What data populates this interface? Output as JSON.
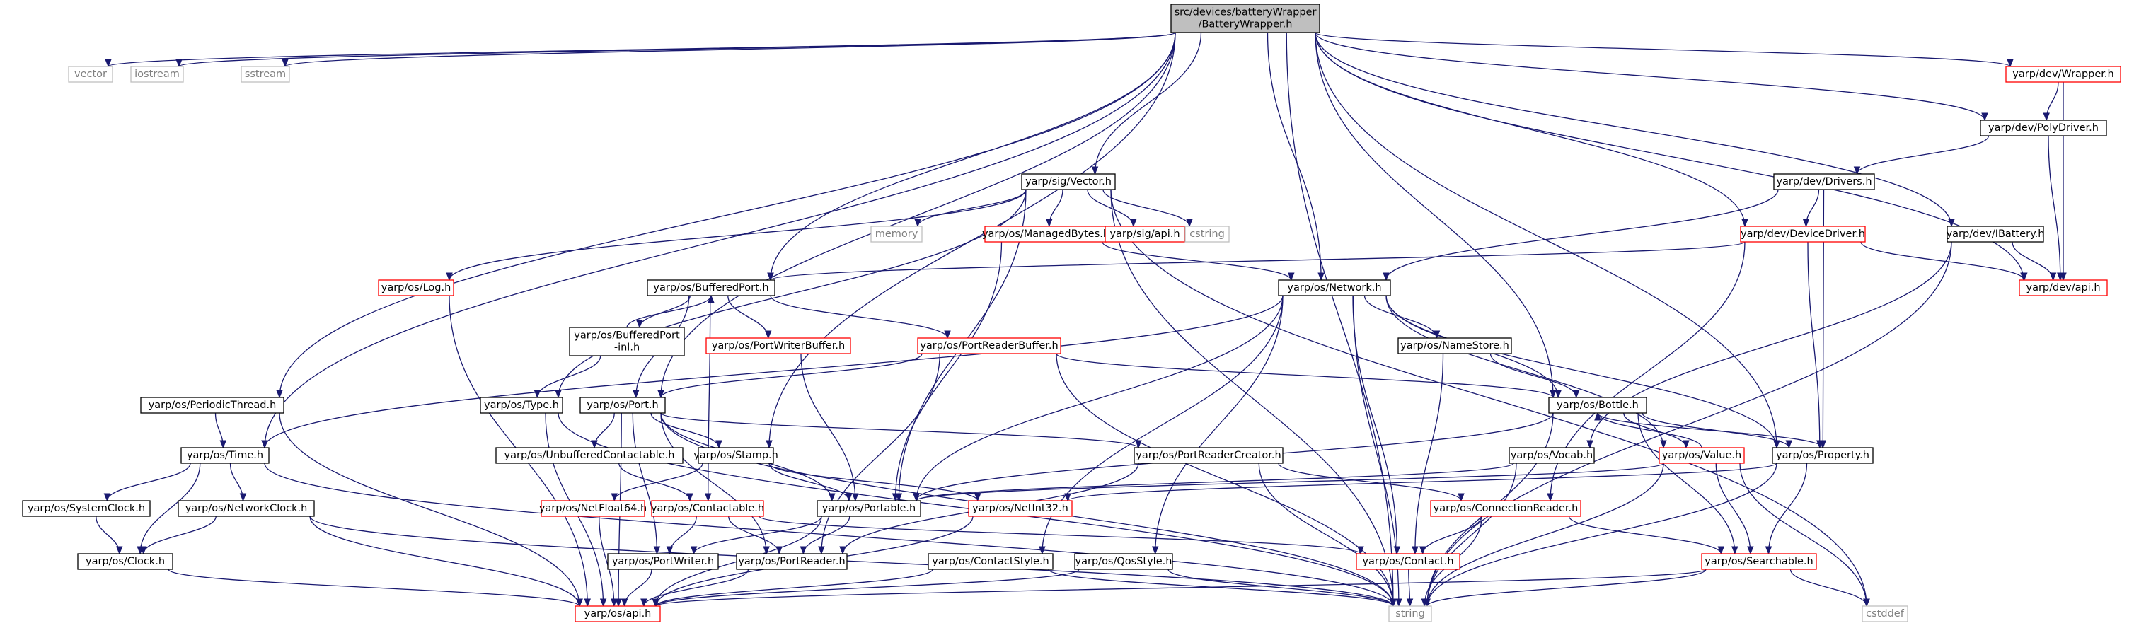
{
  "graph": {
    "nodes": [
      {
        "id": "bw",
        "lines": [
          "src/devices/batteryWrapper",
          "/BatteryWrapper.h"
        ],
        "style": "current"
      },
      {
        "id": "vector",
        "lines": [
          "vector"
        ],
        "style": "sys"
      },
      {
        "id": "iostream",
        "lines": [
          "iostream"
        ],
        "style": "sys"
      },
      {
        "id": "sstream",
        "lines": [
          "sstream"
        ],
        "style": "sys"
      },
      {
        "id": "periodic",
        "lines": [
          "yarp/os/PeriodicThread.h"
        ],
        "style": "normal"
      },
      {
        "id": "time",
        "lines": [
          "yarp/os/Time.h"
        ],
        "style": "normal"
      },
      {
        "id": "sysclock",
        "lines": [
          "yarp/os/SystemClock.h"
        ],
        "style": "normal"
      },
      {
        "id": "netclock",
        "lines": [
          "yarp/os/NetworkClock.h"
        ],
        "style": "normal"
      },
      {
        "id": "clock",
        "lines": [
          "yarp/os/Clock.h"
        ],
        "style": "normal"
      },
      {
        "id": "api",
        "lines": [
          "yarp/os/api.h"
        ],
        "style": "trunc"
      },
      {
        "id": "log",
        "lines": [
          "yarp/os/Log.h"
        ],
        "style": "trunc"
      },
      {
        "id": "type",
        "lines": [
          "yarp/os/Type.h"
        ],
        "style": "normal"
      },
      {
        "id": "bp",
        "lines": [
          "yarp/os/BufferedPort.h"
        ],
        "style": "normal"
      },
      {
        "id": "bpinl",
        "lines": [
          "yarp/os/BufferedPort",
          "-inl.h"
        ],
        "style": "normal"
      },
      {
        "id": "port",
        "lines": [
          "yarp/os/Port.h"
        ],
        "style": "normal"
      },
      {
        "id": "unbuf",
        "lines": [
          "yarp/os/UnbufferedContactable.h"
        ],
        "style": "normal"
      },
      {
        "id": "stamp",
        "lines": [
          "yarp/os/Stamp.h"
        ],
        "style": "normal"
      },
      {
        "id": "nf64",
        "lines": [
          "yarp/os/NetFloat64.h"
        ],
        "style": "trunc"
      },
      {
        "id": "contactable",
        "lines": [
          "yarp/os/Contactable.h"
        ],
        "style": "trunc"
      },
      {
        "id": "portable",
        "lines": [
          "yarp/os/Portable.h"
        ],
        "style": "normal"
      },
      {
        "id": "portwriter",
        "lines": [
          "yarp/os/PortWriter.h"
        ],
        "style": "normal"
      },
      {
        "id": "portreader",
        "lines": [
          "yarp/os/PortReader.h"
        ],
        "style": "normal"
      },
      {
        "id": "pwb",
        "lines": [
          "yarp/os/PortWriterBuffer.h"
        ],
        "style": "trunc"
      },
      {
        "id": "prb",
        "lines": [
          "yarp/os/PortReaderBuffer.h"
        ],
        "style": "trunc"
      },
      {
        "id": "prc",
        "lines": [
          "yarp/os/PortReaderCreator.h"
        ],
        "style": "normal"
      },
      {
        "id": "netint",
        "lines": [
          "yarp/os/NetInt32.h"
        ],
        "style": "trunc"
      },
      {
        "id": "contactstyle",
        "lines": [
          "yarp/os/ContactStyle.h"
        ],
        "style": "normal"
      },
      {
        "id": "qos",
        "lines": [
          "yarp/os/QosStyle.h"
        ],
        "style": "normal"
      },
      {
        "id": "string",
        "lines": [
          "string"
        ],
        "style": "sys"
      },
      {
        "id": "sigvec",
        "lines": [
          "yarp/sig/Vector.h"
        ],
        "style": "normal"
      },
      {
        "id": "memory",
        "lines": [
          "memory"
        ],
        "style": "sys"
      },
      {
        "id": "managed",
        "lines": [
          "yarp/os/ManagedBytes.h"
        ],
        "style": "trunc"
      },
      {
        "id": "sigapi",
        "lines": [
          "yarp/sig/api.h"
        ],
        "style": "trunc"
      },
      {
        "id": "cstring",
        "lines": [
          "cstring"
        ],
        "style": "sys"
      },
      {
        "id": "network",
        "lines": [
          "yarp/os/Network.h"
        ],
        "style": "normal"
      },
      {
        "id": "namestore",
        "lines": [
          "yarp/os/NameStore.h"
        ],
        "style": "normal"
      },
      {
        "id": "bottle",
        "lines": [
          "yarp/os/Bottle.h"
        ],
        "style": "normal"
      },
      {
        "id": "value",
        "lines": [
          "yarp/os/Value.h"
        ],
        "style": "trunc"
      },
      {
        "id": "property",
        "lines": [
          "yarp/os/Property.h"
        ],
        "style": "normal"
      },
      {
        "id": "vocab",
        "lines": [
          "yarp/os/Vocab.h"
        ],
        "style": "normal"
      },
      {
        "id": "connreader",
        "lines": [
          "yarp/os/ConnectionReader.h"
        ],
        "style": "trunc"
      },
      {
        "id": "contact",
        "lines": [
          "yarp/os/Contact.h"
        ],
        "style": "trunc"
      },
      {
        "id": "searchable",
        "lines": [
          "yarp/os/Searchable.h"
        ],
        "style": "trunc"
      },
      {
        "id": "cstddef",
        "lines": [
          "cstddef"
        ],
        "style": "sys"
      },
      {
        "id": "wrapper",
        "lines": [
          "yarp/dev/Wrapper.h"
        ],
        "style": "trunc"
      },
      {
        "id": "polydriver",
        "lines": [
          "yarp/dev/PolyDriver.h"
        ],
        "style": "normal"
      },
      {
        "id": "drivers",
        "lines": [
          "yarp/dev/Drivers.h"
        ],
        "style": "normal"
      },
      {
        "id": "devdriver",
        "lines": [
          "yarp/dev/DeviceDriver.h"
        ],
        "style": "trunc"
      },
      {
        "id": "ibattery",
        "lines": [
          "yarp/dev/IBattery.h"
        ],
        "style": "normal"
      },
      {
        "id": "devapi",
        "lines": [
          "yarp/dev/api.h"
        ],
        "style": "trunc"
      }
    ],
    "edges": [
      [
        "bw",
        "vector"
      ],
      [
        "bw",
        "iostream"
      ],
      [
        "bw",
        "sstream"
      ],
      [
        "bw",
        "periodic"
      ],
      [
        "bw",
        "time"
      ],
      [
        "bw",
        "stamp"
      ],
      [
        "bw",
        "port"
      ],
      [
        "bw",
        "bp"
      ],
      [
        "bw",
        "sigvec"
      ],
      [
        "bw",
        "network"
      ],
      [
        "bw",
        "bottle"
      ],
      [
        "bw",
        "property"
      ],
      [
        "bw",
        "string"
      ],
      [
        "bw",
        "devdriver"
      ],
      [
        "bw",
        "wrapper"
      ],
      [
        "bw",
        "polydriver"
      ],
      [
        "bw",
        "ibattery"
      ],
      [
        "bw",
        "devapi"
      ],
      [
        "periodic",
        "time"
      ],
      [
        "periodic",
        "api"
      ],
      [
        "time",
        "sysclock"
      ],
      [
        "time",
        "netclock"
      ],
      [
        "time",
        "clock"
      ],
      [
        "time",
        "string"
      ],
      [
        "sysclock",
        "clock"
      ],
      [
        "netclock",
        "clock"
      ],
      [
        "netclock",
        "api"
      ],
      [
        "netclock",
        "string"
      ],
      [
        "clock",
        "api"
      ],
      [
        "log",
        "api"
      ],
      [
        "type",
        "api"
      ],
      [
        "type",
        "string"
      ],
      [
        "sigvec",
        "log"
      ],
      [
        "sigvec",
        "type"
      ],
      [
        "sigvec",
        "memory"
      ],
      [
        "sigvec",
        "managed"
      ],
      [
        "sigvec",
        "sigapi"
      ],
      [
        "sigvec",
        "cstring"
      ],
      [
        "sigvec",
        "portable"
      ],
      [
        "sigvec",
        "string"
      ],
      [
        "sigvec",
        "cstddef"
      ],
      [
        "managed",
        "network"
      ],
      [
        "managed",
        "portable"
      ],
      [
        "bp",
        "bpinl"
      ],
      [
        "bp",
        "pwb"
      ],
      [
        "bp",
        "prb"
      ],
      [
        "bp",
        "port"
      ],
      [
        "bp",
        "contactable"
      ],
      [
        "bpinl",
        "bp"
      ],
      [
        "bpinl",
        "type"
      ],
      [
        "pwb",
        "portable"
      ],
      [
        "prb",
        "port"
      ],
      [
        "prb",
        "bottle"
      ],
      [
        "prb",
        "portreader"
      ],
      [
        "prb",
        "string"
      ],
      [
        "port",
        "unbuf"
      ],
      [
        "port",
        "stamp"
      ],
      [
        "port",
        "portable"
      ],
      [
        "port",
        "portwriter"
      ],
      [
        "port",
        "portreader"
      ],
      [
        "port",
        "prc"
      ],
      [
        "port",
        "api"
      ],
      [
        "port",
        "string"
      ],
      [
        "unbuf",
        "contactable"
      ],
      [
        "stamp",
        "nf64"
      ],
      [
        "stamp",
        "portable"
      ],
      [
        "stamp",
        "netint"
      ],
      [
        "nf64",
        "api"
      ],
      [
        "contactable",
        "portwriter"
      ],
      [
        "contactable",
        "portreader"
      ],
      [
        "contactable",
        "contact"
      ],
      [
        "portable",
        "portwriter"
      ],
      [
        "portable",
        "portreader"
      ],
      [
        "portable",
        "api"
      ],
      [
        "portwriter",
        "api"
      ],
      [
        "portreader",
        "api"
      ],
      [
        "netint",
        "api"
      ],
      [
        "prc",
        "portreader"
      ],
      [
        "prc",
        "connreader"
      ],
      [
        "prc",
        "string"
      ],
      [
        "network",
        "time"
      ],
      [
        "network",
        "portable"
      ],
      [
        "network",
        "namestore"
      ],
      [
        "network",
        "bottle"
      ],
      [
        "network",
        "value"
      ],
      [
        "network",
        "property"
      ],
      [
        "network",
        "contactstyle"
      ],
      [
        "network",
        "qos"
      ],
      [
        "network",
        "contact"
      ],
      [
        "network",
        "string"
      ],
      [
        "namestore",
        "bottle"
      ],
      [
        "namestore",
        "contact"
      ],
      [
        "bottle",
        "portable"
      ],
      [
        "bottle",
        "value"
      ],
      [
        "bottle",
        "property"
      ],
      [
        "bottle",
        "searchable"
      ],
      [
        "bottle",
        "string"
      ],
      [
        "value",
        "bottle"
      ],
      [
        "value",
        "portable"
      ],
      [
        "value",
        "searchable"
      ],
      [
        "value",
        "string"
      ],
      [
        "value",
        "cstddef"
      ],
      [
        "property",
        "bottle"
      ],
      [
        "property",
        "netint"
      ],
      [
        "property",
        "searchable"
      ],
      [
        "property",
        "string"
      ],
      [
        "vocab",
        "portable"
      ],
      [
        "vocab",
        "string"
      ],
      [
        "connreader",
        "contact"
      ],
      [
        "connreader",
        "searchable"
      ],
      [
        "connreader",
        "string"
      ],
      [
        "contact",
        "string"
      ],
      [
        "searchable",
        "api"
      ],
      [
        "searchable",
        "string"
      ],
      [
        "searchable",
        "cstddef"
      ],
      [
        "contactstyle",
        "api"
      ],
      [
        "contactstyle",
        "string"
      ],
      [
        "qos",
        "api"
      ],
      [
        "qos",
        "string"
      ],
      [
        "wrapper",
        "polydriver"
      ],
      [
        "wrapper",
        "devapi"
      ],
      [
        "polydriver",
        "drivers"
      ],
      [
        "polydriver",
        "devapi"
      ],
      [
        "drivers",
        "network"
      ],
      [
        "drivers",
        "devdriver"
      ],
      [
        "drivers",
        "property"
      ],
      [
        "devdriver",
        "bp"
      ],
      [
        "devdriver",
        "connreader"
      ],
      [
        "devdriver",
        "property"
      ],
      [
        "devdriver",
        "devapi"
      ],
      [
        "ibattery",
        "vocab"
      ],
      [
        "ibattery",
        "devapi"
      ],
      [
        "ibattery",
        "string"
      ]
    ]
  }
}
